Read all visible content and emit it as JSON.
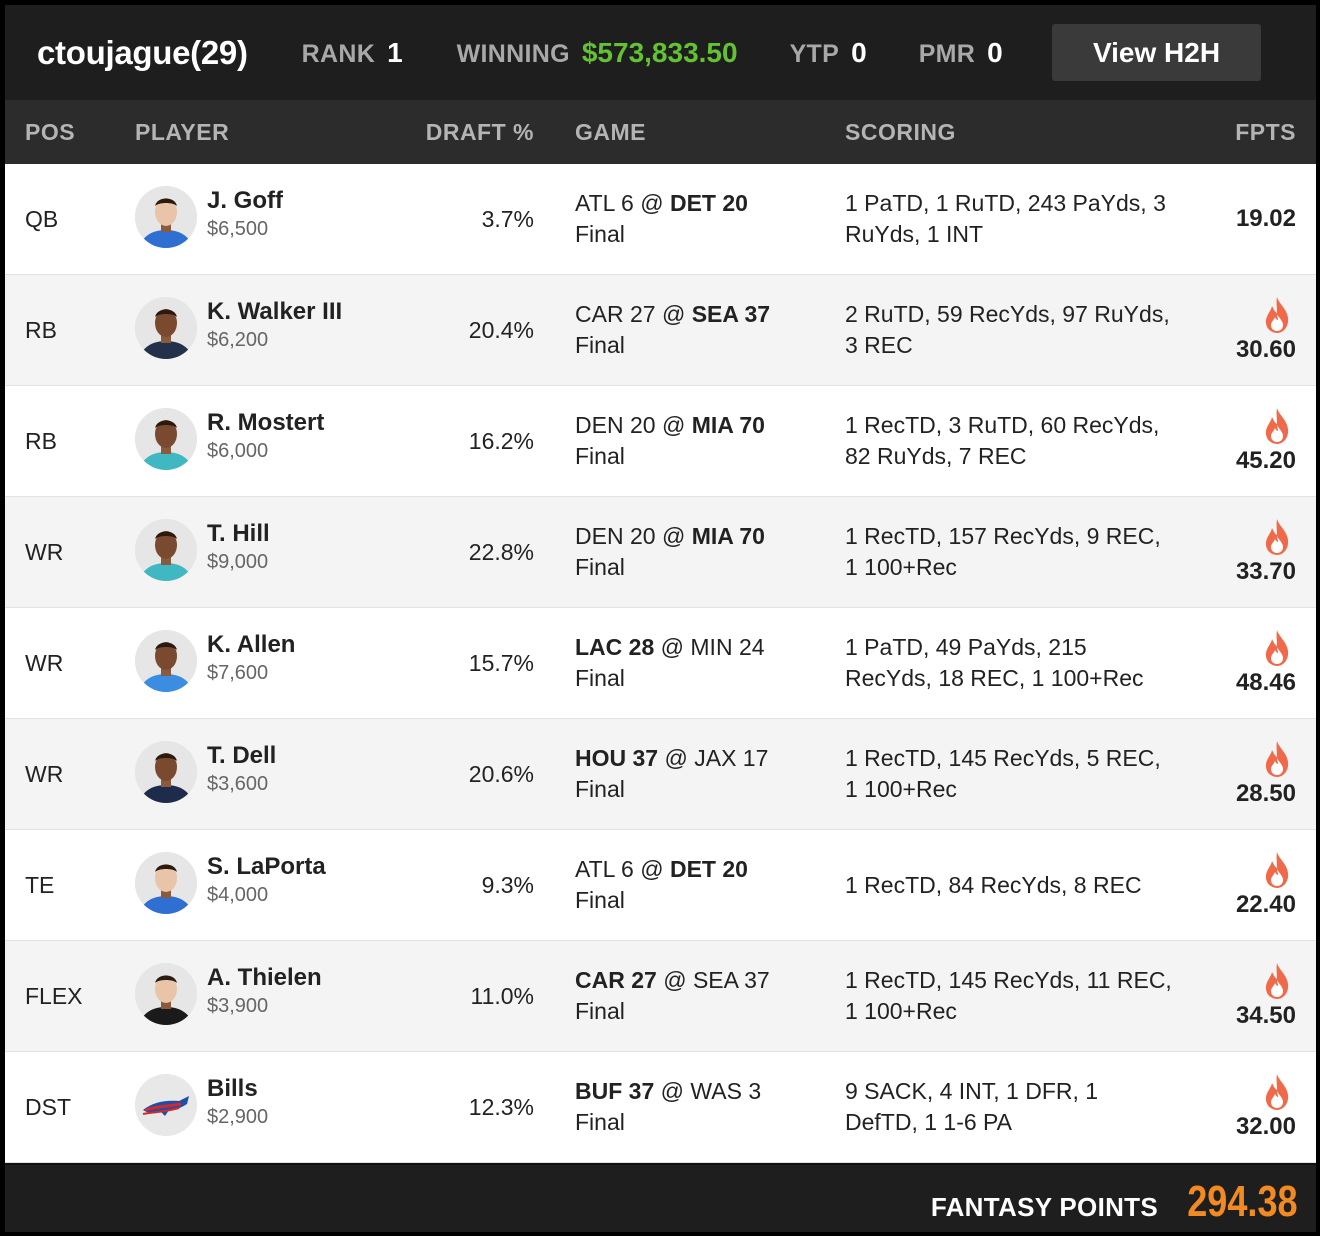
{
  "header": {
    "username": "ctoujague",
    "entries": "(29)",
    "rank_label": "RANK",
    "rank_value": "1",
    "winning_label": "WINNING",
    "winning_value": "$573,833.50",
    "ytp_label": "YTP",
    "ytp_value": "0",
    "pmr_label": "PMR",
    "pmr_value": "0",
    "h2h_button": "View H2H"
  },
  "columns": {
    "pos": "POS",
    "player": "PLAYER",
    "draft": "DRAFT %",
    "game": "GAME",
    "scoring": "SCORING",
    "fpts": "FPTS"
  },
  "rows": [
    {
      "pos": "QB",
      "name": "J. Goff",
      "salary": "$6,500",
      "draft": "3.7%",
      "away": "ATL 6",
      "at": "@",
      "home": "DET 20",
      "bold": "home",
      "status": "Final",
      "scoring": "1 PaTD, 1 RuTD, 243 PaYds, 3 RuYds, 1 INT",
      "fpts": "19.02",
      "hot": false,
      "jersey": "#2f6fd1"
    },
    {
      "pos": "RB",
      "name": "K. Walker III",
      "salary": "$6,200",
      "draft": "20.4%",
      "away": "CAR 27",
      "at": "@",
      "home": "SEA 37",
      "bold": "home",
      "status": "Final",
      "scoring": "2 RuTD, 59 RecYds, 97 RuYds, 3 REC",
      "fpts": "30.60",
      "hot": true,
      "jersey": "#23324a"
    },
    {
      "pos": "RB",
      "name": "R. Mostert",
      "salary": "$6,000",
      "draft": "16.2%",
      "away": "DEN 20",
      "at": "@",
      "home": "MIA 70",
      "bold": "home",
      "status": "Final",
      "scoring": "1 RecTD, 3 RuTD, 60 RecYds, 82 RuYds, 7 REC",
      "fpts": "45.20",
      "hot": true,
      "jersey": "#3fb8c2"
    },
    {
      "pos": "WR",
      "name": "T. Hill",
      "salary": "$9,000",
      "draft": "22.8%",
      "away": "DEN 20",
      "at": "@",
      "home": "MIA 70",
      "bold": "home",
      "status": "Final",
      "scoring": "1 RecTD, 157 RecYds, 9 REC, 1 100+Rec",
      "fpts": "33.70",
      "hot": true,
      "jersey": "#3fb8c2"
    },
    {
      "pos": "WR",
      "name": "K. Allen",
      "salary": "$7,600",
      "draft": "15.7%",
      "away": "LAC 28",
      "at": "@",
      "home": "MIN 24",
      "bold": "away",
      "status": "Final",
      "scoring": "1 PaTD, 49 PaYds, 215 RecYds, 18 REC, 1 100+Rec",
      "fpts": "48.46",
      "hot": true,
      "jersey": "#3a8de0"
    },
    {
      "pos": "WR",
      "name": "T. Dell",
      "salary": "$3,600",
      "draft": "20.6%",
      "away": "HOU 37",
      "at": "@",
      "home": "JAX 17",
      "bold": "away",
      "status": "Final",
      "scoring": "1 RecTD, 145 RecYds, 5 REC, 1 100+Rec",
      "fpts": "28.50",
      "hot": true,
      "jersey": "#1d2c4a"
    },
    {
      "pos": "TE",
      "name": "S. LaPorta",
      "salary": "$4,000",
      "draft": "9.3%",
      "away": "ATL 6",
      "at": "@",
      "home": "DET 20",
      "bold": "home",
      "status": "Final",
      "scoring": "1 RecTD, 84 RecYds, 8 REC",
      "fpts": "22.40",
      "hot": true,
      "jersey": "#2f6fd1"
    },
    {
      "pos": "FLEX",
      "name": "A. Thielen",
      "salary": "$3,900",
      "draft": "11.0%",
      "away": "CAR 27",
      "at": "@",
      "home": "SEA 37",
      "bold": "away",
      "status": "Final",
      "scoring": "1 RecTD, 145 RecYds, 11 REC, 1 100+Rec",
      "fpts": "34.50",
      "hot": true,
      "jersey": "#1a1a1a"
    },
    {
      "pos": "DST",
      "name": "Bills",
      "salary": "$2,900",
      "draft": "12.3%",
      "away": "BUF 37",
      "at": "@",
      "home": "WAS 3",
      "bold": "away",
      "status": "Final",
      "scoring": "9 SACK, 4 INT, 1 DFR, 1 DefTD, 1 1-6 PA",
      "fpts": "32.00",
      "hot": true,
      "logo": "bills-logo"
    }
  ],
  "footer": {
    "label": "FANTASY POINTS",
    "value": "294.38"
  },
  "colors": {
    "winning": "#63c232",
    "fire": "#f06a4a",
    "total": "#f28a21"
  }
}
